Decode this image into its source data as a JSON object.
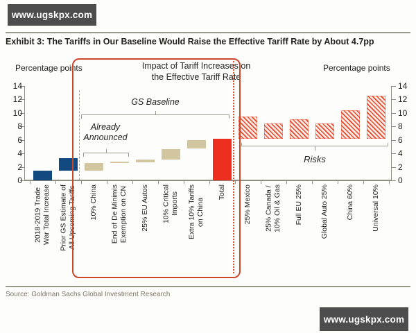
{
  "watermark": {
    "text": "www.ugskpx.com"
  },
  "header": {
    "title": "Exhibit 3: The Tariffs in Our Baseline Would Raise the Effective Tariff Rate by About 4.7pp"
  },
  "footer": {
    "source": "Source: Goldman Sachs Global Investment Research"
  },
  "chart_data": {
    "type": "bar",
    "subtype": "waterfall-with-floating-bars",
    "title": "Impact of Tariff Increases on\nthe Effective Tariff Rate",
    "left_axis_label": "Percentage points",
    "right_axis_label": "Percentage points",
    "ylabel": "Percentage points",
    "ylim": [
      0,
      14
    ],
    "yticks": [
      0,
      2,
      4,
      6,
      8,
      10,
      12,
      14
    ],
    "grid": false,
    "bars": [
      {
        "label": "2018-2019 Trade\nWar Total Increase",
        "from": 0.0,
        "to": 1.4,
        "style": "solid-blue"
      },
      {
        "label": "Prior GS Estimate of\nAll Upcoming Tariffs",
        "from": 1.4,
        "to": 3.3,
        "style": "solid-blue"
      },
      {
        "label": "10% China",
        "from": 1.4,
        "to": 2.6,
        "style": "solid-tan"
      },
      {
        "label": "End of De Minimis\nExemption on CN",
        "from": 2.6,
        "to": 2.75,
        "style": "solid-tan"
      },
      {
        "label": "25% EU Autos",
        "from": 2.7,
        "to": 3.1,
        "style": "solid-tan"
      },
      {
        "label": "10% Critical\nImports",
        "from": 3.1,
        "to": 4.6,
        "style": "solid-tan"
      },
      {
        "label": "Extra 10% Tariffs\non China",
        "from": 4.7,
        "to": 6.0,
        "style": "solid-tan"
      },
      {
        "label": "Total",
        "from": 0.0,
        "to": 6.2,
        "style": "solid-red"
      },
      {
        "label": "25% Mexico",
        "from": 6.2,
        "to": 9.5,
        "style": "hatched-red"
      },
      {
        "label": "25% Canada /\n10% Oil & Gas",
        "from": 6.2,
        "to": 8.4,
        "style": "hatched-red"
      },
      {
        "label": "Full EU 25%",
        "from": 6.2,
        "to": 9.1,
        "style": "hatched-red"
      },
      {
        "label": "Global Auto 25%",
        "from": 6.2,
        "to": 8.4,
        "style": "hatched-red"
      },
      {
        "label": "China 60%",
        "from": 6.2,
        "to": 10.4,
        "style": "hatched-red"
      },
      {
        "label": "Universal 10%",
        "from": 6.2,
        "to": 12.6,
        "style": "hatched-red"
      }
    ],
    "annotations": {
      "gs_baseline": "GS Baseline",
      "already_announced": "Already\nAnnounced",
      "risks": "Risks"
    },
    "colors": {
      "blue_bar": "#12497f",
      "tan_bar": "#d2c6a0",
      "red_bar": "#ee2f1f",
      "hatch_red": "#e8482c",
      "highlight_box_border": "#c9482a",
      "axis_gray": "#8d8d84"
    },
    "legend_position": "none"
  }
}
